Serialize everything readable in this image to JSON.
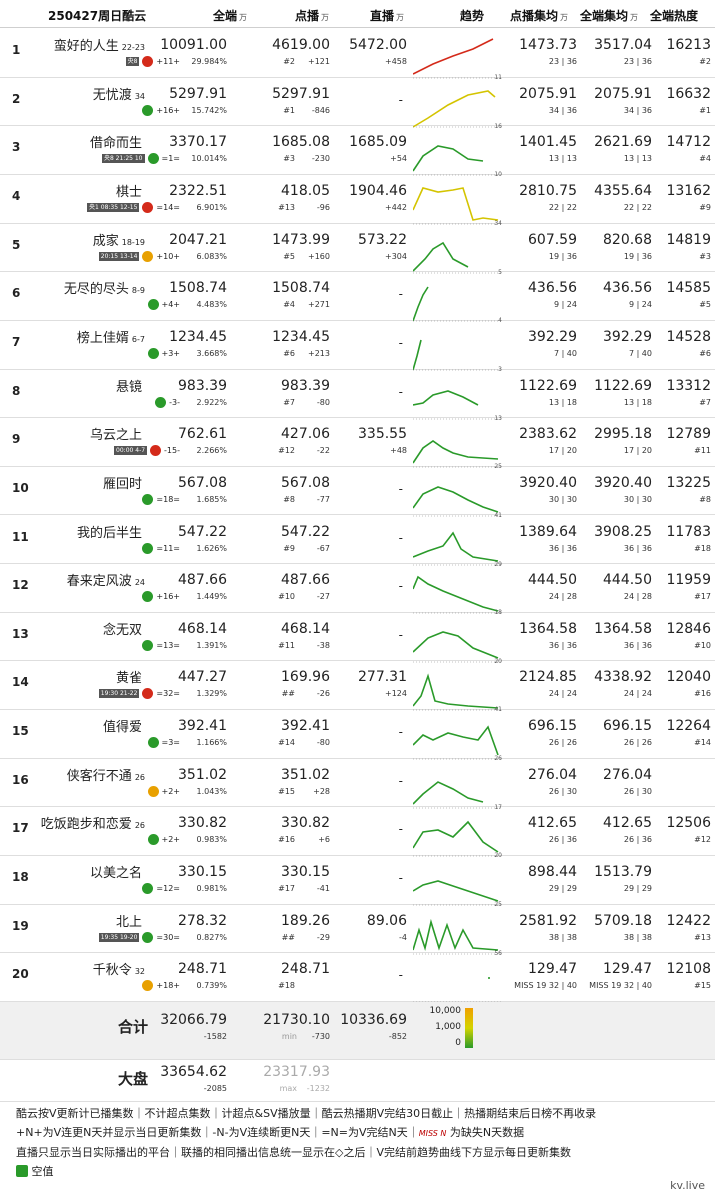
{
  "header": {
    "date": "250427周日酷云",
    "all": "全端",
    "vod": "点播",
    "live": "直播",
    "trend": "趋势",
    "avg_vod": "点播集均",
    "avg_all": "全端集均",
    "heat": "全端热度",
    "unit": "万"
  },
  "rows": [
    {
      "rank": "1",
      "title": "蛮好的人生",
      "ep": "22-23",
      "meta": "+11+",
      "ch": "央8",
      "all": "10091.00",
      "pct": "29.984%",
      "vod": "4619.00",
      "vod_rank": "#2",
      "vod_delta": "+121",
      "live": "5472.00",
      "live_delta": "+458",
      "avg_vod": "1473.73",
      "avg_vod_sub": "23 | 36",
      "avg_all": "3517.04",
      "avg_all_sub": "23 | 36",
      "heat": "16213",
      "heat_rank": "#2",
      "trend_end": "11"
    },
    {
      "rank": "2",
      "title": "无忧渡",
      "ep": "34",
      "meta": "+16+",
      "ch": "",
      "all": "5297.91",
      "pct": "15.742%",
      "vod": "5297.91",
      "vod_rank": "#1",
      "vod_delta": "-846",
      "live": "",
      "live_delta": "",
      "avg_vod": "2075.91",
      "avg_vod_sub": "34 | 36",
      "avg_all": "2075.91",
      "avg_all_sub": "34 | 36",
      "heat": "16632",
      "heat_rank": "#1",
      "trend_end": "16"
    },
    {
      "rank": "3",
      "title": "借命而生",
      "ep": "",
      "meta": "=1=",
      "ch": "央8 21:25 10",
      "all": "3370.17",
      "pct": "10.014%",
      "vod": "1685.08",
      "vod_rank": "#3",
      "vod_delta": "-230",
      "live": "1685.09",
      "live_delta": "+54",
      "avg_vod": "1401.45",
      "avg_vod_sub": "13 | 13",
      "avg_all": "2621.69",
      "avg_all_sub": "13 | 13",
      "heat": "14712",
      "heat_rank": "#4",
      "trend_end": "10"
    },
    {
      "rank": "4",
      "title": "棋士",
      "ep": "",
      "meta": "=14=",
      "ch": "央1 08:35 12-15",
      "all": "2322.51",
      "pct": "6.901%",
      "vod": "418.05",
      "vod_rank": "#13",
      "vod_delta": "-96",
      "live": "1904.46",
      "live_delta": "+442",
      "avg_vod": "2810.75",
      "avg_vod_sub": "22 | 22",
      "avg_all": "4355.64",
      "avg_all_sub": "22 | 22",
      "heat": "13162",
      "heat_rank": "#9",
      "trend_end": "34"
    },
    {
      "rank": "5",
      "title": "成家",
      "ep": "18-19",
      "meta": "+10+",
      "ch": "20:15 13-14",
      "all": "2047.21",
      "pct": "6.083%",
      "vod": "1473.99",
      "vod_rank": "#5",
      "vod_delta": "+160",
      "live": "573.22",
      "live_delta": "+304",
      "avg_vod": "607.59",
      "avg_vod_sub": "19 | 36",
      "avg_all": "820.68",
      "avg_all_sub": "19 | 36",
      "heat": "14819",
      "heat_rank": "#3",
      "trend_end": "5"
    },
    {
      "rank": "6",
      "title": "无尽的尽头",
      "ep": "8-9",
      "meta": "+4+",
      "ch": "",
      "all": "1508.74",
      "pct": "4.483%",
      "vod": "1508.74",
      "vod_rank": "#4",
      "vod_delta": "+271",
      "live": "",
      "live_delta": "",
      "avg_vod": "436.56",
      "avg_vod_sub": "9 | 24",
      "avg_all": "436.56",
      "avg_all_sub": "9 | 24",
      "heat": "14585",
      "heat_rank": "#5",
      "trend_end": "4"
    },
    {
      "rank": "7",
      "title": "榜上佳婿",
      "ep": "6-7",
      "meta": "+3+",
      "ch": "",
      "all": "1234.45",
      "pct": "3.668%",
      "vod": "1234.45",
      "vod_rank": "#6",
      "vod_delta": "+213",
      "live": "",
      "live_delta": "",
      "avg_vod": "392.29",
      "avg_vod_sub": "7 | 40",
      "avg_all": "392.29",
      "avg_all_sub": "7 | 40",
      "heat": "14528",
      "heat_rank": "#6",
      "trend_end": "3"
    },
    {
      "rank": "8",
      "title": "悬镜",
      "ep": "",
      "meta": "-3-",
      "ch": "",
      "all": "983.39",
      "pct": "2.922%",
      "vod": "983.39",
      "vod_rank": "#7",
      "vod_delta": "-80",
      "live": "",
      "live_delta": "",
      "avg_vod": "1122.69",
      "avg_vod_sub": "13 | 18",
      "avg_all": "1122.69",
      "avg_all_sub": "13 | 18",
      "heat": "13312",
      "heat_rank": "#7",
      "trend_end": "13"
    },
    {
      "rank": "9",
      "title": "乌云之上",
      "ep": "",
      "meta": "-15-",
      "ch": "00:00 4-7",
      "all": "762.61",
      "pct": "2.266%",
      "vod": "427.06",
      "vod_rank": "#12",
      "vod_delta": "-22",
      "live": "335.55",
      "live_delta": "+48",
      "avg_vod": "2383.62",
      "avg_vod_sub": "17 | 20",
      "avg_all": "2995.18",
      "avg_all_sub": "17 | 20",
      "heat": "12789",
      "heat_rank": "#11",
      "trend_end": "25"
    },
    {
      "rank": "10",
      "title": "雁回时",
      "ep": "",
      "meta": "=18=",
      "ch": "",
      "all": "567.08",
      "pct": "1.685%",
      "vod": "567.08",
      "vod_rank": "#8",
      "vod_delta": "-77",
      "live": "",
      "live_delta": "",
      "avg_vod": "3920.40",
      "avg_vod_sub": "30 | 30",
      "avg_all": "3920.40",
      "avg_all_sub": "30 | 30",
      "heat": "13225",
      "heat_rank": "#8",
      "trend_end": "41"
    },
    {
      "rank": "11",
      "title": "我的后半生",
      "ep": "",
      "meta": "=11=",
      "ch": "",
      "all": "547.22",
      "pct": "1.626%",
      "vod": "547.22",
      "vod_rank": "#9",
      "vod_delta": "-67",
      "live": "",
      "live_delta": "",
      "avg_vod": "1389.64",
      "avg_vod_sub": "36 | 36",
      "avg_all": "3908.25",
      "avg_all_sub": "36 | 36",
      "heat": "11783",
      "heat_rank": "#18",
      "trend_end": "29"
    },
    {
      "rank": "12",
      "title": "春来定风波",
      "ep": "24",
      "meta": "+16+",
      "ch": "",
      "all": "487.66",
      "pct": "1.449%",
      "vod": "487.66",
      "vod_rank": "#10",
      "vod_delta": "-27",
      "live": "",
      "live_delta": "",
      "avg_vod": "444.50",
      "avg_vod_sub": "24 | 28",
      "avg_all": "444.50",
      "avg_all_sub": "24 | 28",
      "heat": "11959",
      "heat_rank": "#17",
      "trend_end": "18"
    },
    {
      "rank": "13",
      "title": "念无双",
      "ep": "",
      "meta": "=13=",
      "ch": "",
      "all": "468.14",
      "pct": "1.391%",
      "vod": "468.14",
      "vod_rank": "#11",
      "vod_delta": "-38",
      "live": "",
      "live_delta": "",
      "avg_vod": "1364.58",
      "avg_vod_sub": "36 | 36",
      "avg_all": "1364.58",
      "avg_all_sub": "36 | 36",
      "heat": "12846",
      "heat_rank": "#10",
      "trend_end": "20"
    },
    {
      "rank": "14",
      "title": "黄雀",
      "ep": "",
      "meta": "=32=",
      "ch": "19:30 21-22",
      "all": "447.27",
      "pct": "1.329%",
      "vod": "169.96",
      "vod_rank": "##",
      "vod_delta": "-26",
      "live": "277.31",
      "live_delta": "+124",
      "avg_vod": "2124.85",
      "avg_vod_sub": "24 | 24",
      "avg_all": "4338.92",
      "avg_all_sub": "24 | 24",
      "heat": "12040",
      "heat_rank": "#16",
      "trend_end": "41"
    },
    {
      "rank": "15",
      "title": "值得爱",
      "ep": "",
      "meta": "=3=",
      "ch": "",
      "all": "392.41",
      "pct": "1.166%",
      "vod": "392.41",
      "vod_rank": "#14",
      "vod_delta": "-80",
      "live": "",
      "live_delta": "",
      "avg_vod": "696.15",
      "avg_vod_sub": "26 | 26",
      "avg_all": "696.15",
      "avg_all_sub": "26 | 26",
      "heat": "12264",
      "heat_rank": "#14",
      "trend_end": "26"
    },
    {
      "rank": "16",
      "title": "侠客行不通",
      "ep": "26",
      "meta": "+2+",
      "ch": "",
      "all": "351.02",
      "pct": "1.043%",
      "vod": "351.02",
      "vod_rank": "#15",
      "vod_delta": "+28",
      "live": "",
      "live_delta": "",
      "avg_vod": "276.04",
      "avg_vod_sub": "26 | 30",
      "avg_all": "276.04",
      "avg_all_sub": "26 | 30",
      "heat": "",
      "heat_rank": "",
      "trend_end": "17"
    },
    {
      "rank": "17",
      "title": "吃饭跑步和恋爱",
      "ep": "26",
      "meta": "+2+",
      "ch": "",
      "all": "330.82",
      "pct": "0.983%",
      "vod": "330.82",
      "vod_rank": "#16",
      "vod_delta": "+6",
      "live": "",
      "live_delta": "",
      "avg_vod": "412.65",
      "avg_vod_sub": "26 | 36",
      "avg_all": "412.65",
      "avg_all_sub": "26 | 36",
      "heat": "12506",
      "heat_rank": "#12",
      "trend_end": "20"
    },
    {
      "rank": "18",
      "title": "以美之名",
      "ep": "",
      "meta": "=12=",
      "ch": "",
      "all": "330.15",
      "pct": "0.981%",
      "vod": "330.15",
      "vod_rank": "#17",
      "vod_delta": "-41",
      "live": "",
      "live_delta": "",
      "avg_vod": "898.44",
      "avg_vod_sub": "29 | 29",
      "avg_all": "1513.79",
      "avg_all_sub": "29 | 29",
      "heat": "",
      "heat_rank": "",
      "trend_end": "25"
    },
    {
      "rank": "19",
      "title": "北上",
      "ep": "",
      "meta": "=30=",
      "ch": "19:35 19-20",
      "all": "278.32",
      "pct": "0.827%",
      "vod": "189.26",
      "vod_rank": "##",
      "vod_delta": "-29",
      "live": "89.06",
      "live_delta": "-4",
      "avg_vod": "2581.92",
      "avg_vod_sub": "38 | 38",
      "avg_all": "5709.18",
      "avg_all_sub": "38 | 38",
      "heat": "12422",
      "heat_rank": "#13",
      "trend_end": "56"
    },
    {
      "rank": "20",
      "title": "千秋令",
      "ep": "32",
      "meta": "+18+",
      "ch": "",
      "all": "248.71",
      "pct": "0.739%",
      "vod": "248.71",
      "vod_rank": "#18",
      "vod_delta": "",
      "live": "",
      "live_delta": "",
      "avg_vod": "129.47",
      "avg_vod_sub": "MISS 19 32 | 40",
      "avg_all": "129.47",
      "avg_all_sub": "MISS 19 32 | 40",
      "heat": "12108",
      "heat_rank": "#15",
      "trend_end": ""
    }
  ],
  "total": {
    "label": "合计",
    "all": "32066.79",
    "all_delta": "-1582",
    "vod": "21730.10",
    "vod_sub": "min",
    "vod_delta": "-730",
    "live": "10336.69",
    "live_delta": "-852"
  },
  "market": {
    "label": "大盘",
    "all": "33654.62",
    "all_delta": "-2085",
    "vod": "23317.93",
    "vod_sub": "max",
    "vod_delta": "-1232"
  },
  "legend": {
    "max": "10,000",
    "mid": "1,000",
    "min": "0"
  },
  "footer": {
    "line1": "酷云按V更新计已播集数｜不计超点集数｜计超点&SV播放量｜酷云热播期V完结30日截止｜热播期结束后日榜不再收录",
    "line2a": "+N+为V连更N天并显示当日更新集数｜-N-为V连续断更N天｜=N=为V完结N天｜",
    "miss": "MISS N",
    "line2b": "为缺失N天数据",
    "line3": "直播只显示当日实际播出的平台｜联播的相同播出信息统一显示在◇之后｜V完结前趋势曲线下方显示每日更新集数",
    "line4": "空值",
    "watermark": "kv.live"
  },
  "chart_data": {
    "type": "table",
    "title": "250427周日酷云",
    "columns": [
      "全端",
      "点播",
      "直播",
      "趋势",
      "点播集均",
      "全端集均",
      "全端热度"
    ],
    "unit": "万",
    "series": [
      {
        "name": "全端",
        "values": [
          10091.0,
          5297.91,
          3370.17,
          2322.51,
          2047.21,
          1508.74,
          1234.45,
          983.39,
          762.61,
          567.08,
          547.22,
          487.66,
          468.14,
          447.27,
          392.41,
          351.02,
          330.82,
          330.15,
          278.32,
          248.71
        ]
      },
      {
        "name": "点播",
        "values": [
          4619.0,
          5297.91,
          1685.08,
          418.05,
          1473.99,
          1508.74,
          1234.45,
          983.39,
          427.06,
          567.08,
          547.22,
          487.66,
          468.14,
          169.96,
          392.41,
          351.02,
          330.82,
          330.15,
          189.26,
          248.71
        ]
      },
      {
        "name": "直播",
        "values": [
          5472.0,
          null,
          1685.09,
          1904.46,
          573.22,
          null,
          null,
          null,
          335.55,
          null,
          null,
          null,
          null,
          277.31,
          null,
          null,
          null,
          null,
          89.06,
          null
        ]
      }
    ]
  },
  "trend_colors": {
    "green": "#2a9a2a",
    "yellow": "#d4c400",
    "orange": "#f09000",
    "red": "#d42a1a",
    "gray": "#888888"
  }
}
